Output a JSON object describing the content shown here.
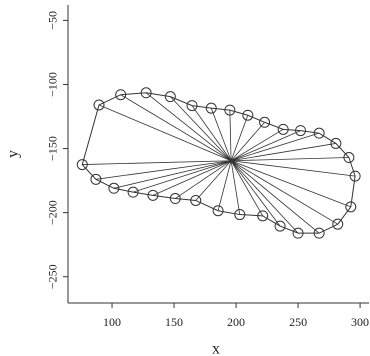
{
  "chart_data": {
    "type": "scatter",
    "x_label": "x",
    "y_label": "y",
    "x": [
      76,
      89.5,
      107,
      127.5,
      147,
      164.5,
      180,
      195,
      209.5,
      223,
      238,
      252,
      267,
      280.5,
      291,
      296,
      292.5,
      282,
      267,
      250,
      235.5,
      221.5,
      203,
      185.5,
      167.5,
      151,
      133,
      117,
      101.5,
      87
    ],
    "y": [
      -162.5,
      -116,
      -108,
      -106.5,
      -109.5,
      -116.5,
      -118.5,
      -120,
      -124,
      -129.5,
      -135,
      -136,
      -138,
      -146,
      -157,
      -171.5,
      -195.5,
      -209,
      -216,
      -216,
      -210.5,
      -202.5,
      -201.5,
      -198.5,
      -190.5,
      -189,
      -186.5,
      -184,
      -181,
      -174
    ],
    "center": {
      "x": 196,
      "y": -159.5
    },
    "xlim": [
      64.5,
      308
    ],
    "ylim": [
      -270.5,
      -38
    ],
    "xticks": [
      100,
      150,
      200,
      250,
      300
    ],
    "yticks": [
      {
        "value": -50,
        "label": "−50"
      },
      {
        "value": -100,
        "label": "−100"
      },
      {
        "value": -150,
        "label": "−150"
      },
      {
        "value": -200,
        "label": "−200"
      },
      {
        "value": -250,
        "label": "−250"
      }
    ],
    "color": "#333333"
  }
}
